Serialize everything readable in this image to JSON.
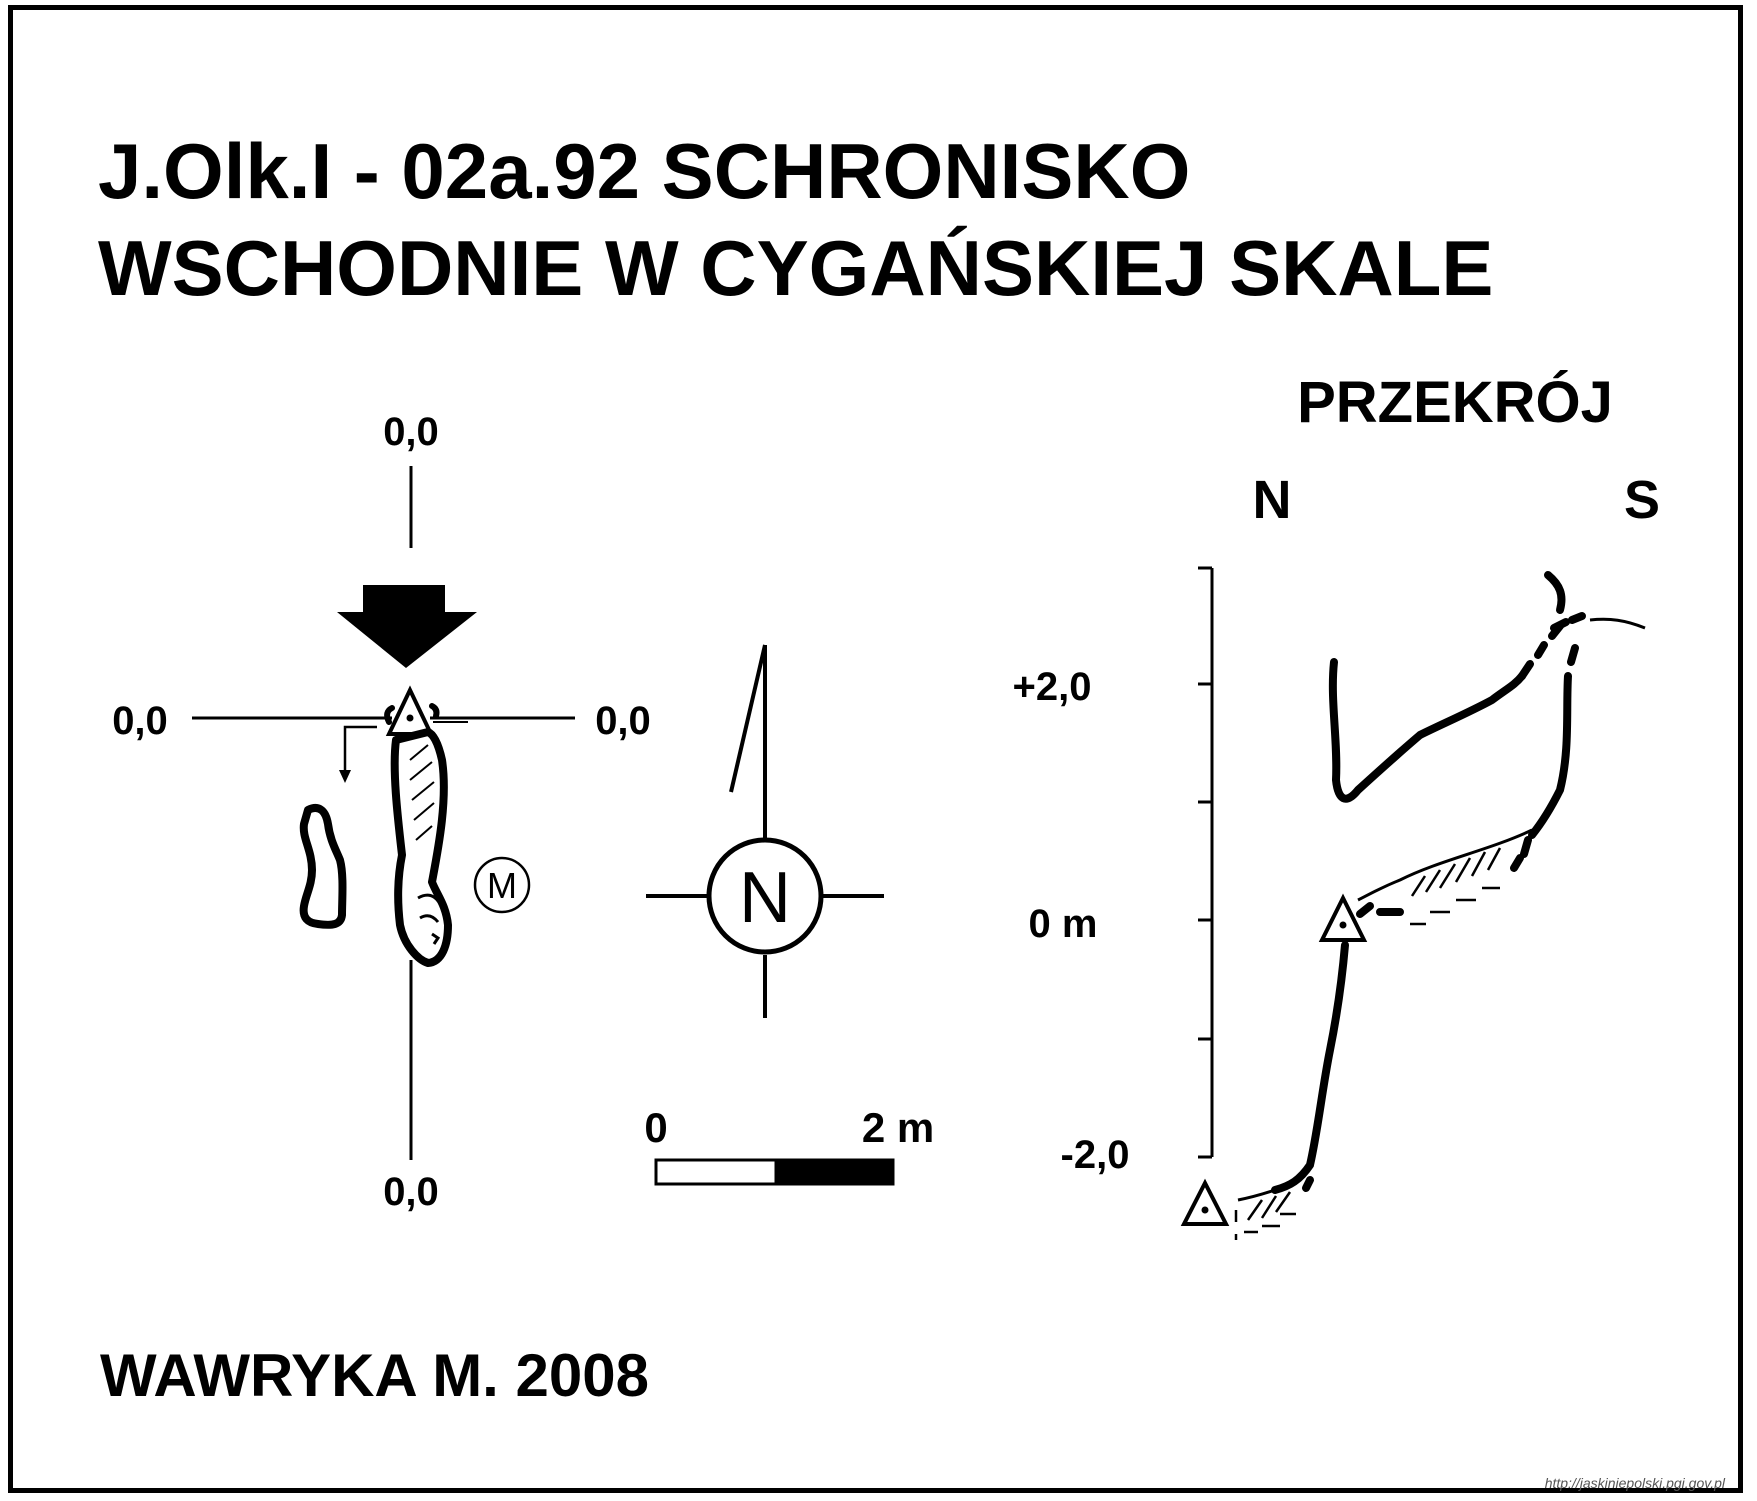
{
  "title": {
    "line1": "J.Olk.I - 02a.92  SCHRONISKO",
    "line2": "WSCHODNIE W CYGAŃSKIEJ SKALE"
  },
  "plan": {
    "top_label": "0,0",
    "bottom_label": "0,0",
    "left_label": "0,0",
    "right_label": "0,0",
    "marker_letter": "M"
  },
  "compass": {
    "letter": "N"
  },
  "scale_bar": {
    "start_label": "0",
    "end_label": "2 m"
  },
  "section": {
    "title": "PRZEKRÓJ",
    "left_dir": "N",
    "right_dir": "S",
    "labels": [
      "+2,0",
      "0 m",
      "-2,0"
    ]
  },
  "author": "WAWRYKA M. 2008",
  "source": "http://jaskiniepolski.pgi.gov.pl"
}
